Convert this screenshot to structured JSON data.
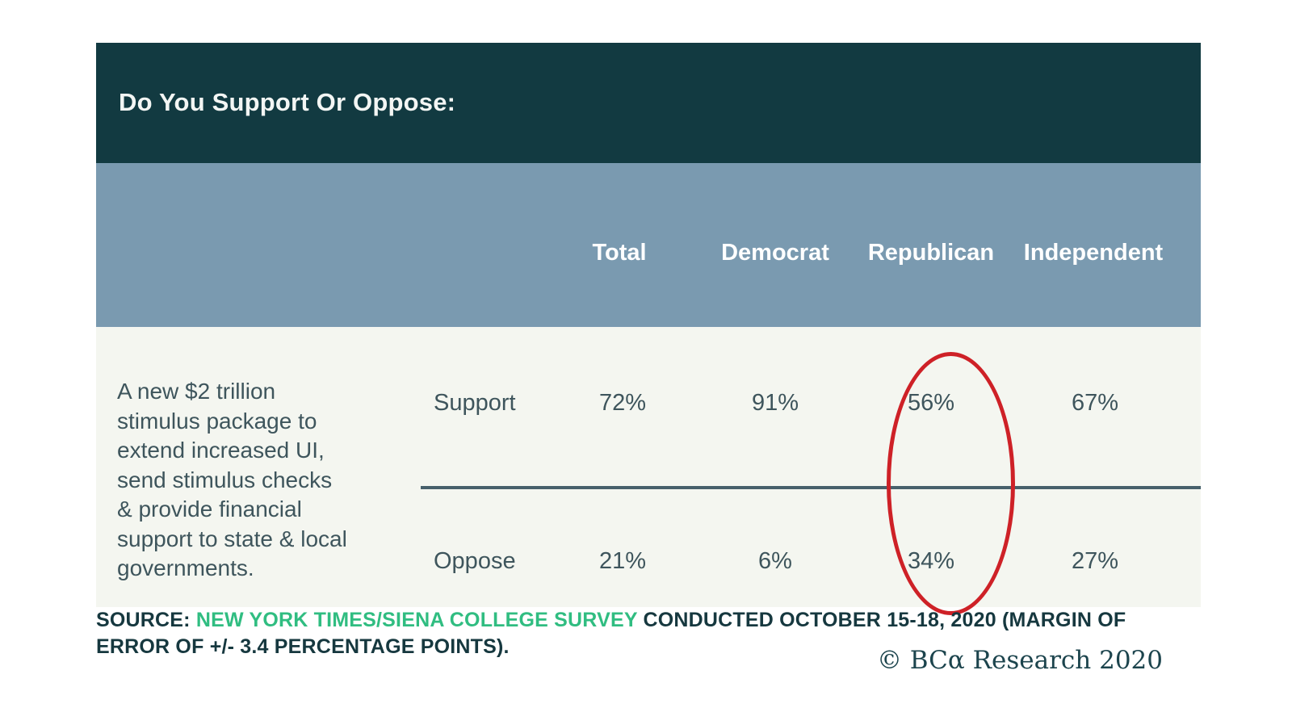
{
  "header": {
    "title": "Do You Support Or Oppose:"
  },
  "columns": [
    "Total",
    "Democrat",
    "Republican",
    "Independent"
  ],
  "question": "A new $2 trillion\nstimulus package to\nextend increased UI,\nsend stimulus checks\n& provide financial\nsupport to state & local\ngovernments.",
  "rows": [
    {
      "label": "Support",
      "values": [
        "72%",
        "91%",
        "56%",
        "67%"
      ]
    },
    {
      "label": "Oppose",
      "values": [
        "21%",
        "6%",
        "34%",
        "27%"
      ]
    }
  ],
  "annotation": {
    "shape": "red-ellipse",
    "highlighted_column": "Republican",
    "highlighted_values": [
      "56%",
      "34%"
    ],
    "color": "#ce2127"
  },
  "source": {
    "prefix": "SOURCE: ",
    "link_text": "NEW YORK TIMES/SIENA COLLEGE SURVEY",
    "rest": " CONDUCTED OCTOBER 15-18, 2020 (MARGIN OF ERROR OF +/- 3.4 PERCENTAGE POINTS).",
    "link_color": "#30bd81"
  },
  "copyright": "© BCα Research 2020",
  "colors": {
    "title_bar_bg": "#123a41",
    "column_header_bg": "#7a9ab0",
    "body_bg": "#f4f6f0",
    "body_text": "#3e555c",
    "divider": "#47606b",
    "highlight_red": "#ce2127",
    "source_green": "#30bd81",
    "footer_text": "#16383f"
  },
  "chart_data": {
    "type": "table",
    "title": "Do You Support Or Oppose:",
    "question": "A new $2 trillion stimulus package to extend increased UI, send stimulus checks & provide financial support to state & local governments.",
    "categories": [
      "Total",
      "Democrat",
      "Republican",
      "Independent"
    ],
    "series": [
      {
        "name": "Support",
        "values": [
          72,
          91,
          56,
          67
        ]
      },
      {
        "name": "Oppose",
        "values": [
          21,
          6,
          34,
          27
        ]
      }
    ],
    "units": "percent",
    "annotations": [
      "Republican column values (56% support / 34% oppose) circled in red"
    ],
    "source": "SOURCE: NEW YORK TIMES/SIENA COLLEGE SURVEY CONDUCTED OCTOBER 15-18, 2020 (MARGIN OF ERROR OF +/- 3.4 PERCENTAGE POINTS).",
    "credit": "© BCα Research 2020"
  }
}
